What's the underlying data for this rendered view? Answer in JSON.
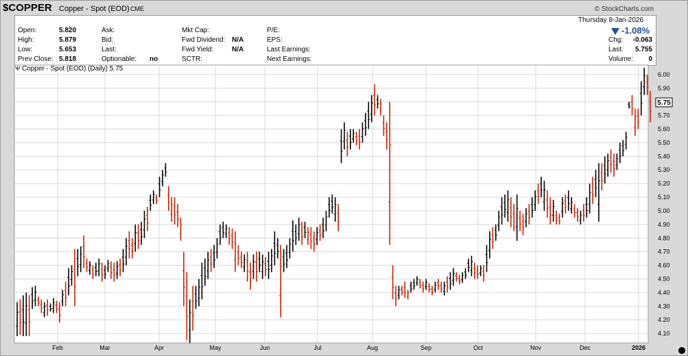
{
  "header": {
    "symbol": "$COPPER",
    "name": "Copper - Spot (EOD)",
    "exchange": "CME",
    "copyright": "© StockCharts.com"
  },
  "quote": {
    "open_label": "Open:",
    "open": "5.820",
    "high_label": "High:",
    "high": "5.879",
    "low_label": "Low:",
    "low": "5.653",
    "prev_close_label": "Prev Close:",
    "prev_close": "5.818",
    "ask_label": "Ask:",
    "bid_label": "Bid:",
    "last_label": "Last:",
    "optionable_label": "Optionable:",
    "optionable": "no",
    "mktcap_label": "Mkt Cap:",
    "fwd_div_label": "Fwd Dividend:",
    "fwd_div": "N/A",
    "fwd_yield_label": "Fwd Yield:",
    "fwd_yield": "N/A",
    "sctr_label": "SCTR:",
    "pe_label": "P/E:",
    "eps_label": "EPS:",
    "last_earnings_label": "Last Earnings:",
    "next_earnings_label": "Next Earnings:",
    "date": "Thursday  8-Jan-2026",
    "change_pct": "-1.08%",
    "chg_label": "Chg:",
    "chg": "-0.063",
    "last_price_label": "Last:",
    "last_price": "5.755",
    "volume_label": "Volume:",
    "volume": "0"
  },
  "legend": {
    "text": "Copper - Spot (EOD) (Daily) 5.75"
  },
  "colors": {
    "up": "#000000",
    "down": "#cc2200",
    "grid": "#d8d8d8",
    "background": "#ffffff",
    "accent": "#1f4e9e"
  },
  "chart_data": {
    "type": "ohlc",
    "y_ticks": [
      "4.10",
      "4.20",
      "4.30",
      "4.40",
      "4.50",
      "4.60",
      "4.70",
      "4.80",
      "4.90",
      "5.00",
      "5.10",
      "5.20",
      "5.30",
      "5.40",
      "5.50",
      "5.60",
      "5.70",
      "5.80",
      "5.90",
      "6.00"
    ],
    "ylim": [
      4.03,
      6.07
    ],
    "x_labels": [
      "Feb",
      "Mar",
      "Apr",
      "May",
      "Jun",
      "Jul",
      "Aug",
      "Sep",
      "Oct",
      "Nov",
      "Dec",
      "2026"
    ],
    "last_price_label": "5.75",
    "grid": true,
    "bars": [
      [
        4.08,
        4.33
      ],
      [
        4.09,
        4.35
      ],
      [
        4.08,
        4.38
      ],
      [
        4.08,
        4.4
      ],
      [
        4.08,
        4.38
      ],
      [
        4.28,
        4.44
      ],
      [
        4.3,
        4.45
      ],
      [
        4.3,
        4.37
      ],
      [
        4.25,
        4.35
      ],
      [
        4.22,
        4.33
      ],
      [
        4.23,
        4.35
      ],
      [
        4.26,
        4.32
      ],
      [
        4.25,
        4.36
      ],
      [
        4.25,
        4.34
      ],
      [
        4.18,
        4.33
      ],
      [
        4.3,
        4.42
      ],
      [
        4.3,
        4.48
      ],
      [
        4.38,
        4.58
      ],
      [
        4.45,
        4.6
      ],
      [
        4.3,
        4.72
      ],
      [
        4.52,
        4.72
      ],
      [
        4.55,
        4.74
      ],
      [
        4.58,
        4.82
      ],
      [
        4.55,
        4.65
      ],
      [
        4.53,
        4.63
      ],
      [
        4.5,
        4.6
      ],
      [
        4.52,
        4.62
      ],
      [
        4.52,
        4.65
      ],
      [
        4.48,
        4.62
      ],
      [
        4.5,
        4.6
      ],
      [
        4.55,
        4.64
      ],
      [
        4.5,
        4.63
      ],
      [
        4.48,
        4.62
      ],
      [
        4.5,
        4.63
      ],
      [
        4.52,
        4.65
      ],
      [
        4.55,
        4.72
      ],
      [
        4.6,
        4.8
      ],
      [
        4.65,
        4.85
      ],
      [
        4.65,
        4.8
      ],
      [
        4.7,
        4.9
      ],
      [
        4.72,
        4.9
      ],
      [
        4.75,
        4.92
      ],
      [
        4.8,
        5.0
      ],
      [
        4.85,
        5.03
      ],
      [
        5.0,
        5.12
      ],
      [
        5.05,
        5.15
      ],
      [
        5.05,
        5.12
      ],
      [
        5.1,
        5.25
      ],
      [
        5.18,
        5.3
      ],
      [
        5.25,
        5.35
      ],
      [
        5.0,
        5.18
      ],
      [
        4.92,
        5.1
      ],
      [
        4.9,
        5.1
      ],
      [
        4.88,
        5.05
      ],
      [
        4.78,
        4.95
      ],
      [
        4.3,
        4.7
      ],
      [
        4.05,
        4.55
      ],
      [
        4.03,
        4.35
      ],
      [
        4.12,
        4.45
      ],
      [
        4.28,
        4.45
      ],
      [
        4.3,
        4.5
      ],
      [
        4.35,
        4.62
      ],
      [
        4.45,
        4.65
      ],
      [
        4.5,
        4.7
      ],
      [
        4.55,
        4.72
      ],
      [
        4.58,
        4.75
      ],
      [
        4.65,
        4.8
      ],
      [
        4.75,
        4.9
      ],
      [
        4.8,
        4.92
      ],
      [
        4.8,
        4.9
      ],
      [
        4.75,
        4.88
      ],
      [
        4.72,
        4.87
      ],
      [
        4.55,
        4.85
      ],
      [
        4.6,
        4.75
      ],
      [
        4.58,
        4.7
      ],
      [
        4.55,
        4.68
      ],
      [
        4.48,
        4.7
      ],
      [
        4.42,
        4.62
      ],
      [
        4.5,
        4.68
      ],
      [
        4.48,
        4.7
      ],
      [
        4.55,
        4.7
      ],
      [
        4.5,
        4.68
      ],
      [
        4.52,
        4.66
      ],
      [
        4.5,
        4.7
      ],
      [
        4.55,
        4.72
      ],
      [
        4.6,
        4.85
      ],
      [
        4.65,
        4.8
      ],
      [
        4.22,
        4.75
      ],
      [
        4.55,
        4.72
      ],
      [
        4.58,
        4.75
      ],
      [
        4.65,
        4.8
      ],
      [
        4.7,
        4.93
      ],
      [
        4.75,
        4.9
      ],
      [
        4.78,
        4.95
      ],
      [
        4.75,
        4.92
      ],
      [
        4.8,
        4.92
      ],
      [
        4.75,
        4.88
      ],
      [
        4.72,
        4.88
      ],
      [
        4.7,
        4.85
      ],
      [
        4.75,
        4.88
      ],
      [
        4.78,
        4.9
      ],
      [
        4.8,
        4.95
      ],
      [
        4.85,
        5.0
      ],
      [
        4.95,
        5.1
      ],
      [
        4.98,
        5.12
      ],
      [
        4.92,
        5.1
      ],
      [
        4.85,
        5.05
      ],
      [
        5.35,
        5.6
      ],
      [
        5.45,
        5.65
      ],
      [
        5.4,
        5.58
      ],
      [
        5.45,
        5.6
      ],
      [
        5.5,
        5.6
      ],
      [
        5.48,
        5.58
      ],
      [
        5.45,
        5.6
      ],
      [
        5.5,
        5.65
      ],
      [
        5.55,
        5.72
      ],
      [
        5.6,
        5.8
      ],
      [
        5.65,
        5.85
      ],
      [
        5.7,
        5.93
      ],
      [
        5.75,
        5.85
      ],
      [
        5.7,
        5.82
      ],
      [
        5.55,
        5.7
      ],
      [
        5.45,
        5.65
      ],
      [
        4.75,
        5.8
      ],
      [
        4.35,
        4.6
      ],
      [
        4.3,
        4.45
      ],
      [
        4.35,
        4.45
      ],
      [
        4.38,
        4.45
      ],
      [
        4.36,
        4.48
      ],
      [
        4.35,
        4.42
      ],
      [
        4.4,
        4.48
      ],
      [
        4.42,
        4.5
      ],
      [
        4.45,
        4.52
      ],
      [
        4.43,
        4.5
      ],
      [
        4.4,
        4.48
      ],
      [
        4.42,
        4.5
      ],
      [
        4.4,
        4.47
      ],
      [
        4.38,
        4.45
      ],
      [
        4.4,
        4.48
      ],
      [
        4.42,
        4.5
      ],
      [
        4.4,
        4.48
      ],
      [
        4.38,
        4.48
      ],
      [
        4.4,
        4.52
      ],
      [
        4.42,
        4.55
      ],
      [
        4.45,
        4.58
      ],
      [
        4.48,
        4.55
      ],
      [
        4.46,
        4.53
      ],
      [
        4.47,
        4.55
      ],
      [
        4.5,
        4.58
      ],
      [
        4.55,
        4.65
      ],
      [
        4.52,
        4.67
      ],
      [
        4.5,
        4.62
      ],
      [
        4.5,
        4.6
      ],
      [
        4.52,
        4.6
      ],
      [
        4.48,
        4.6
      ],
      [
        4.55,
        4.75
      ],
      [
        4.65,
        4.85
      ],
      [
        4.72,
        4.88
      ],
      [
        4.78,
        4.9
      ],
      [
        4.85,
        5.0
      ],
      [
        4.9,
        5.1
      ],
      [
        4.95,
        5.12
      ],
      [
        4.92,
        5.15
      ],
      [
        4.88,
        5.1
      ],
      [
        4.85,
        5.05
      ],
      [
        4.78,
        5.12
      ],
      [
        4.85,
        5.0
      ],
      [
        4.82,
        4.98
      ],
      [
        4.88,
        5.02
      ],
      [
        4.9,
        5.05
      ],
      [
        4.95,
        5.1
      ],
      [
        5.0,
        5.15
      ],
      [
        5.05,
        5.2
      ],
      [
        5.1,
        5.25
      ],
      [
        5.0,
        5.22
      ],
      [
        4.95,
        5.15
      ],
      [
        4.9,
        5.1
      ],
      [
        4.92,
        5.08
      ],
      [
        4.9,
        5.0
      ],
      [
        4.9,
        4.98
      ],
      [
        4.95,
        5.1
      ],
      [
        4.98,
        5.12
      ],
      [
        5.0,
        5.15
      ],
      [
        4.98,
        5.1
      ],
      [
        4.95,
        5.05
      ],
      [
        4.92,
        5.02
      ],
      [
        4.9,
        5.0
      ],
      [
        4.92,
        5.05
      ],
      [
        4.95,
        5.1
      ],
      [
        4.98,
        5.2
      ],
      [
        5.05,
        5.25
      ],
      [
        5.1,
        5.3
      ],
      [
        4.92,
        5.35
      ],
      [
        5.15,
        5.35
      ],
      [
        5.2,
        5.4
      ],
      [
        5.25,
        5.42
      ],
      [
        5.28,
        5.45
      ],
      [
        5.25,
        5.42
      ],
      [
        5.3,
        5.42
      ],
      [
        5.35,
        5.5
      ],
      [
        5.4,
        5.52
      ],
      [
        5.45,
        5.58
      ],
      [
        5.75,
        5.8
      ],
      [
        5.7,
        5.85
      ],
      [
        5.55,
        5.75
      ],
      [
        5.6,
        5.75
      ],
      [
        5.7,
        5.95
      ],
      [
        5.85,
        6.05
      ],
      [
        5.85,
        6.0
      ],
      [
        5.65,
        5.88
      ]
    ],
    "bar_colors": "alternating by close vs previous close"
  }
}
